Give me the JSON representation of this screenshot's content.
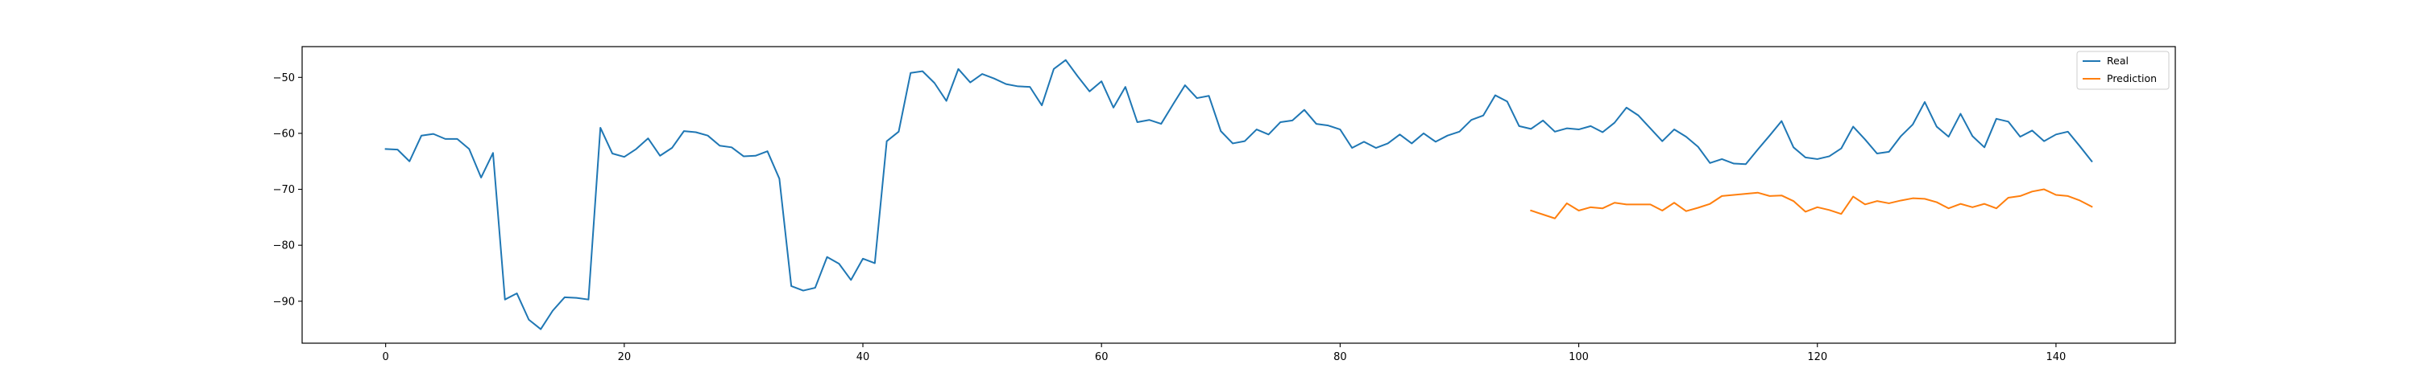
{
  "chart_data": {
    "type": "line",
    "title": "",
    "xlabel": "",
    "ylabel": "",
    "xlim": [
      -7,
      150
    ],
    "ylim": [
      -97.5,
      -44.5
    ],
    "xticks": [
      0,
      20,
      40,
      60,
      80,
      100,
      120,
      140
    ],
    "yticks": [
      -90,
      -80,
      -70,
      -60,
      -50
    ],
    "xtick_labels": [
      "0",
      "20",
      "40",
      "60",
      "80",
      "100",
      "120",
      "140"
    ],
    "ytick_labels": [
      "−90",
      "−80",
      "−70",
      "−60",
      "−50"
    ],
    "grid": false,
    "legend_position": "top-right",
    "series": [
      {
        "name": "Real",
        "color": "#1f77b4",
        "x_start": 0,
        "values": [
          -62.8,
          -62.9,
          -65.0,
          -60.4,
          -60.1,
          -61.0,
          -61.0,
          -62.8,
          -67.9,
          -63.5,
          -89.7,
          -88.6,
          -93.3,
          -95.0,
          -91.7,
          -89.3,
          -89.4,
          -89.7,
          -59.0,
          -63.6,
          -64.2,
          -62.8,
          -60.9,
          -64.0,
          -62.6,
          -59.6,
          -59.8,
          -60.4,
          -62.2,
          -62.5,
          -64.1,
          -64.0,
          -63.2,
          -68.1,
          -87.3,
          -88.1,
          -87.6,
          -82.1,
          -83.3,
          -86.2,
          -82.4,
          -83.2,
          -61.4,
          -59.7,
          -49.2,
          -48.9,
          -51.0,
          -54.2,
          -48.5,
          -50.9,
          -49.4,
          -50.2,
          -51.2,
          -51.6,
          -51.7,
          -55.0,
          -48.5,
          -46.9,
          -49.8,
          -52.5,
          -50.7,
          -55.4,
          -51.7,
          -58.0,
          -57.6,
          -58.3,
          -54.8,
          -51.4,
          -53.7,
          -53.3,
          -59.6,
          -61.8,
          -61.4,
          -59.3,
          -60.2,
          -58.0,
          -57.7,
          -55.8,
          -58.3,
          -58.6,
          -59.3,
          -62.6,
          -61.5,
          -62.6,
          -61.8,
          -60.2,
          -61.8,
          -60.0,
          -61.5,
          -60.4,
          -59.7,
          -57.6,
          -56.8,
          -53.2,
          -54.3,
          -58.7,
          -59.2,
          -57.7,
          -59.7,
          -59.1,
          -59.3,
          -58.7,
          -59.8,
          -58.1,
          -55.4,
          -56.8,
          -59.1,
          -61.4,
          -59.3,
          -60.6,
          -62.4,
          -65.3,
          -64.6,
          -65.4,
          -65.5,
          -62.9,
          -60.4,
          -57.8,
          -62.5,
          -64.3,
          -64.6,
          -64.1,
          -62.7,
          -58.8,
          -61.1,
          -63.6,
          -63.3,
          -60.5,
          -58.4,
          -54.4,
          -58.8,
          -60.6,
          -56.5,
          -60.5,
          -62.5,
          -57.4,
          -57.9,
          -60.6,
          -59.5,
          -61.4,
          -60.2,
          -59.7,
          -62.3,
          -65.0
        ]
      },
      {
        "name": "Prediction",
        "color": "#ff7f0e",
        "x_start": 96,
        "values": [
          -73.8,
          -74.5,
          -75.2,
          -72.5,
          -73.8,
          -73.2,
          -73.4,
          -72.4,
          -72.7,
          -72.7,
          -72.7,
          -73.8,
          -72.4,
          -73.9,
          -73.3,
          -72.6,
          -71.2,
          -71.0,
          -70.8,
          -70.6,
          -71.2,
          -71.1,
          -72.1,
          -74.0,
          -73.2,
          -73.7,
          -74.4,
          -71.3,
          -72.7,
          -72.1,
          -72.5,
          -72.0,
          -71.6,
          -71.7,
          -72.3,
          -73.4,
          -72.6,
          -73.2,
          -72.6,
          -73.4,
          -71.5,
          -71.2,
          -70.4,
          -70.0,
          -71.0,
          -71.2,
          -72.0,
          -73.1
        ]
      }
    ]
  }
}
